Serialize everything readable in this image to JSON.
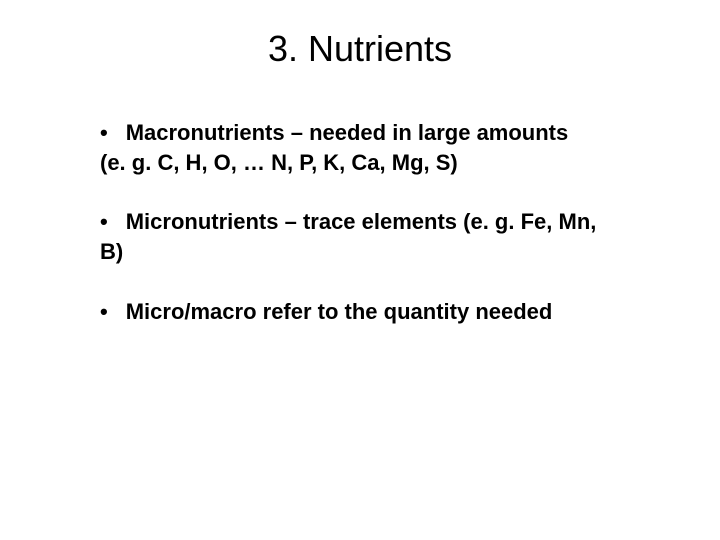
{
  "slide": {
    "title": "3.  Nutrients",
    "bullets": [
      {
        "marker": "•",
        "text": "Macronutrients – needed in large amounts (e. g. C, H, O, … N, P, K, Ca, Mg, S)"
      },
      {
        "marker": "•",
        "text": "Micronutrients – trace elements (e. g. Fe, Mn, B)"
      },
      {
        "marker": "•",
        "text": "Micro/macro refer to the quantity needed"
      }
    ],
    "title_fontsize": 36,
    "body_fontsize": 22,
    "text_color": "#000000",
    "background_color": "#ffffff"
  }
}
